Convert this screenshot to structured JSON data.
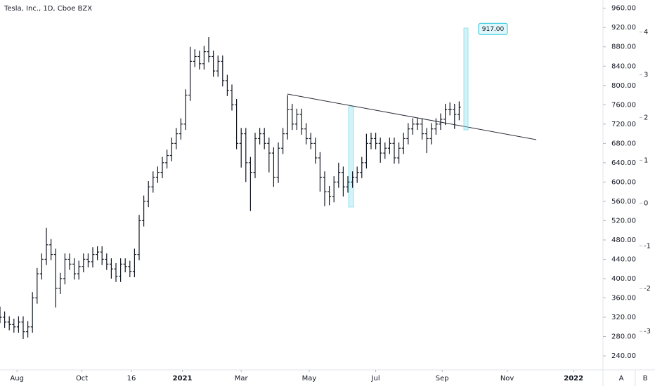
{
  "chart_data": {
    "type": "ohlc",
    "title": "Tesla, Inc., 1D, Cboe BZX",
    "color": "#131722",
    "x": [
      0,
      3,
      6,
      9,
      12,
      15,
      18,
      21,
      24,
      27,
      30,
      33,
      36,
      39,
      42,
      45,
      48,
      51,
      54,
      57,
      60,
      63,
      66,
      69,
      72,
      75,
      78,
      81,
      84,
      87,
      90,
      93,
      96,
      99,
      102,
      105,
      108,
      111,
      114,
      117,
      120,
      123,
      126,
      129,
      132,
      135,
      138,
      141,
      144,
      147,
      150,
      153,
      156,
      159,
      162,
      165,
      168,
      171,
      174,
      177,
      180,
      183,
      186,
      189,
      192,
      195,
      198,
      201,
      204,
      207,
      210,
      213,
      216,
      219,
      222,
      225,
      228,
      231,
      234,
      237,
      240,
      243,
      246,
      249,
      252,
      255,
      258,
      261,
      264,
      267,
      270,
      273,
      276,
      279,
      282,
      285,
      288,
      291,
      294,
      297
    ],
    "open": [
      330,
      320,
      310,
      305,
      300,
      310,
      290,
      300,
      360,
      410,
      440,
      470,
      450,
      380,
      400,
      440,
      430,
      410,
      425,
      440,
      435,
      450,
      455,
      440,
      430,
      420,
      405,
      430,
      425,
      415,
      450,
      520,
      560,
      590,
      610,
      620,
      640,
      655,
      680,
      700,
      720,
      780,
      850,
      860,
      845,
      870,
      860,
      830,
      850,
      810,
      790,
      760,
      680,
      700,
      640,
      620,
      690,
      700,
      680,
      660,
      610,
      670,
      700,
      750,
      720,
      740,
      710,
      690,
      680,
      650,
      610,
      580,
      570,
      600,
      620,
      590,
      600,
      610,
      620,
      640,
      680,
      690,
      680,
      660,
      670,
      680,
      650,
      670,
      690,
      710,
      720,
      720,
      700,
      690,
      710,
      720,
      730,
      750,
      750,
      740
    ],
    "high": [
      342,
      332,
      322,
      317,
      322,
      322,
      312,
      372,
      422,
      452,
      505,
      482,
      462,
      412,
      452,
      452,
      442,
      437,
      452,
      452,
      465,
      467,
      467,
      452,
      442,
      432,
      442,
      442,
      437,
      462,
      532,
      572,
      602,
      622,
      632,
      652,
      667,
      692,
      712,
      732,
      792,
      880,
      875,
      872,
      882,
      900,
      872,
      862,
      862,
      822,
      802,
      772,
      712,
      712,
      652,
      702,
      712,
      712,
      692,
      672,
      682,
      712,
      780,
      762,
      752,
      752,
      722,
      702,
      692,
      662,
      622,
      592,
      612,
      640,
      632,
      612,
      622,
      632,
      652,
      700,
      702,
      702,
      692,
      682,
      692,
      692,
      682,
      702,
      722,
      732,
      732,
      732,
      712,
      722,
      732,
      742,
      762,
      765,
      762,
      767
    ],
    "low": [
      308,
      298,
      293,
      288,
      288,
      275,
      278,
      288,
      348,
      398,
      428,
      438,
      340,
      368,
      388,
      418,
      398,
      398,
      413,
      423,
      423,
      438,
      428,
      418,
      400,
      393,
      393,
      413,
      403,
      403,
      438,
      508,
      548,
      578,
      598,
      608,
      628,
      643,
      668,
      688,
      708,
      768,
      838,
      833,
      833,
      848,
      818,
      818,
      798,
      778,
      748,
      668,
      630,
      600,
      540,
      608,
      678,
      668,
      620,
      590,
      598,
      658,
      688,
      708,
      708,
      698,
      678,
      668,
      638,
      580,
      550,
      552,
      558,
      588,
      570,
      578,
      588,
      598,
      608,
      628,
      668,
      668,
      640,
      648,
      658,
      638,
      638,
      658,
      678,
      698,
      708,
      688,
      660,
      678,
      698,
      708,
      718,
      738,
      710,
      728
    ],
    "close": [
      320,
      310,
      305,
      300,
      310,
      290,
      300,
      360,
      410,
      440,
      470,
      450,
      380,
      400,
      440,
      430,
      410,
      425,
      440,
      435,
      450,
      455,
      440,
      430,
      420,
      405,
      430,
      425,
      415,
      450,
      520,
      560,
      590,
      610,
      620,
      640,
      655,
      680,
      700,
      720,
      780,
      850,
      860,
      845,
      870,
      860,
      830,
      850,
      810,
      790,
      760,
      680,
      700,
      640,
      620,
      690,
      700,
      680,
      660,
      610,
      670,
      700,
      750,
      720,
      740,
      710,
      690,
      680,
      650,
      610,
      580,
      570,
      600,
      620,
      590,
      600,
      610,
      620,
      640,
      680,
      690,
      680,
      660,
      670,
      680,
      650,
      670,
      690,
      710,
      720,
      720,
      700,
      690,
      710,
      720,
      730,
      750,
      750,
      740,
      755
    ],
    "xlim": [
      0,
      390
    ],
    "xticks": [
      {
        "value": 11,
        "label": "Aug"
      },
      {
        "value": 53,
        "label": "Oct"
      },
      {
        "value": 85,
        "label": "16"
      },
      {
        "value": 118,
        "label": "2021"
      },
      {
        "value": 156,
        "label": "Mar"
      },
      {
        "value": 200,
        "label": "May"
      },
      {
        "value": 243,
        "label": "Jul"
      },
      {
        "value": 286,
        "label": "Sep"
      },
      {
        "value": 328,
        "label": "Nov"
      },
      {
        "value": 371,
        "label": "2022"
      }
    ],
    "ylim": [
      211,
      977
    ],
    "yticks": [
      {
        "value": 240,
        "label": "240.00"
      },
      {
        "value": 280,
        "label": "280.00"
      },
      {
        "value": 320,
        "label": "320.00"
      },
      {
        "value": 360,
        "label": "360.00"
      },
      {
        "value": 400,
        "label": "400.00"
      },
      {
        "value": 440,
        "label": "440.00"
      },
      {
        "value": 480,
        "label": "480.00"
      },
      {
        "value": 520,
        "label": "520.00"
      },
      {
        "value": 560,
        "label": "560.00"
      },
      {
        "value": 600,
        "label": "600.00"
      },
      {
        "value": 640,
        "label": "640.00"
      },
      {
        "value": 680,
        "label": "680.00"
      },
      {
        "value": 720,
        "label": "720.00"
      },
      {
        "value": 760,
        "label": "760.00"
      },
      {
        "value": 800,
        "label": "800.00"
      },
      {
        "value": 840,
        "label": "840.00"
      },
      {
        "value": 880,
        "label": "880.00"
      },
      {
        "value": 920,
        "label": "920.00"
      },
      {
        "value": 960,
        "label": "960.00"
      }
    ],
    "y2lim": [
      -3.9,
      4.75
    ],
    "y2ticks": [
      -3,
      -2,
      -1,
      0,
      1,
      2,
      3,
      4
    ],
    "price_tag": {
      "value": 917,
      "label": "917.00"
    },
    "scale_buttons": [
      "A",
      "B"
    ]
  }
}
